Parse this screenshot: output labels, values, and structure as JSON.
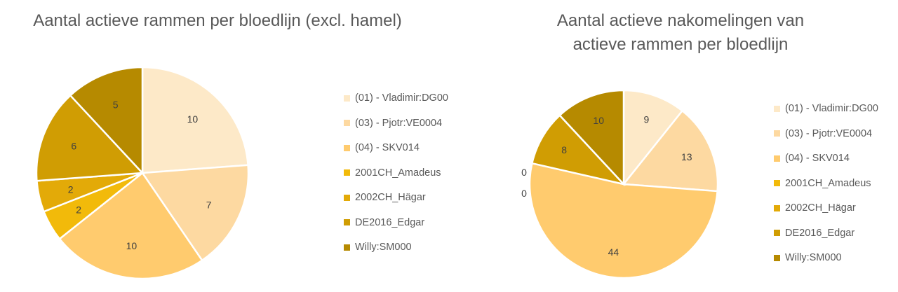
{
  "colors": {
    "(01) - Vladimir:DG00": "#FDE9C8",
    "(03) - Pjotr:VE0004": "#FDD9A1",
    "(04) - SKV014": "#FFCB6E",
    "2001CH_Amadeus": "#F2BA0A",
    "2002CH_Hägar": "#E3AA08",
    "DE2016_Edgar": "#D09D03",
    "Willy:SM000": "#B68A00"
  },
  "chart_data": [
    {
      "type": "pie",
      "title": "Aantal actieve rammen per bloedlijn (excl. hamel)",
      "legend_position": "right",
      "categories": [
        "(01) - Vladimir:DG00",
        "(03) - Pjotr:VE0004",
        "(04) - SKV014",
        "2001CH_Amadeus",
        "2002CH_Hägar",
        "DE2016_Edgar",
        "Willy:SM000"
      ],
      "values": [
        10,
        7,
        10,
        2,
        2,
        6,
        5
      ]
    },
    {
      "type": "pie",
      "title": "Aantal actieve nakomelingen van actieve rammen per bloedlijn",
      "legend_position": "right",
      "categories": [
        "(01) - Vladimir:DG00",
        "(03) - Pjotr:VE0004",
        "(04) - SKV014",
        "2001CH_Amadeus",
        "2002CH_Hägar",
        "DE2016_Edgar",
        "Willy:SM000"
      ],
      "values": [
        9,
        13,
        44,
        0,
        0,
        8,
        10
      ]
    }
  ]
}
